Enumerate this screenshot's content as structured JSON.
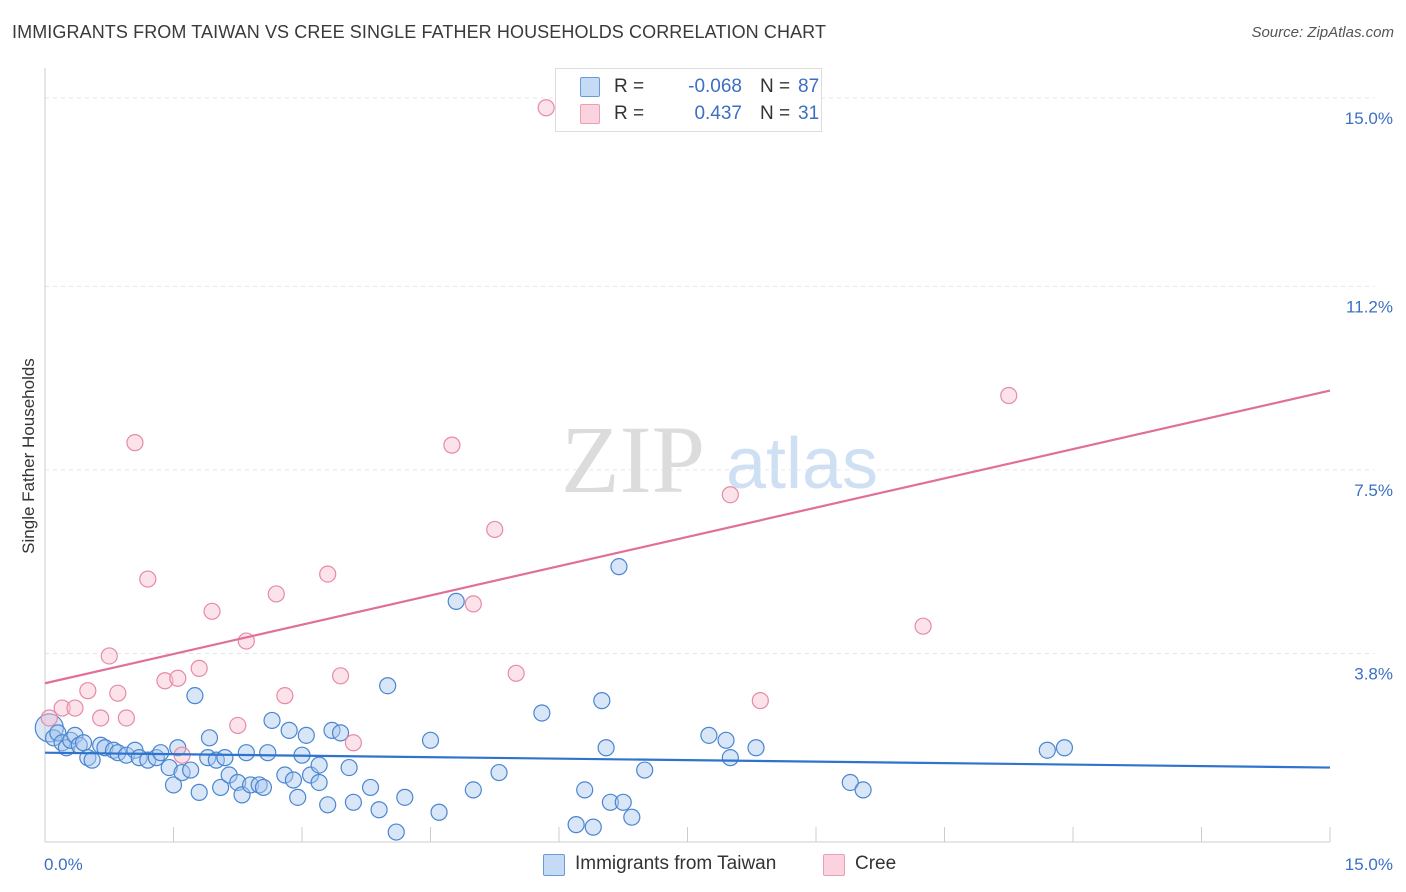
{
  "title": "IMMIGRANTS FROM TAIWAN VS CREE SINGLE FATHER HOUSEHOLDS CORRELATION CHART",
  "source": "Source: ZipAtlas.com",
  "watermark": {
    "zip": "ZIP",
    "atlas": "atlas"
  },
  "colors": {
    "blue_fill": "#a8c8f0",
    "blue_stroke": "#4a86d0",
    "blue_line": "#2f73cc",
    "pink_fill": "#f8c0d0",
    "pink_stroke": "#e68aa8",
    "pink_line": "#e0709a",
    "tick_label": "#3b6fc4",
    "grid": "#e6e6e6"
  },
  "stats": [
    {
      "series": "Immigrants from Taiwan",
      "r_label": "R =",
      "r_value": "-0.068",
      "n_label": "N =",
      "n_value": "87"
    },
    {
      "series": "Cree",
      "r_label": "R =",
      "r_value": "0.437",
      "n_label": "N =",
      "n_value": "31"
    }
  ],
  "legend": [
    {
      "label": "Immigrants from Taiwan"
    },
    {
      "label": "Cree"
    }
  ],
  "chart_data": {
    "type": "scatter",
    "title": "IMMIGRANTS FROM TAIWAN VS CREE SINGLE FATHER HOUSEHOLDS CORRELATION CHART",
    "xlabel": "",
    "ylabel": "Single Father Households",
    "xlim": [
      0,
      15
    ],
    "ylim": [
      0,
      15.4
    ],
    "x_tick_labels": [
      "0.0%",
      "15.0%"
    ],
    "y_ticks": [
      3.8,
      7.5,
      11.2,
      15.0
    ],
    "y_tick_labels": [
      "3.8%",
      "7.5%",
      "11.2%",
      "15.0%"
    ],
    "grid": true,
    "legend_position": "bottom",
    "series": [
      {
        "name": "Immigrants from Taiwan",
        "color": "#4a86d0",
        "points": [
          [
            0.05,
            2.3
          ],
          [
            0.1,
            2.1
          ],
          [
            0.15,
            2.2
          ],
          [
            0.2,
            2.0
          ],
          [
            0.25,
            1.9
          ],
          [
            0.3,
            2.05
          ],
          [
            0.35,
            2.15
          ],
          [
            0.4,
            1.95
          ],
          [
            0.45,
            2.0
          ],
          [
            0.5,
            1.7
          ],
          [
            0.55,
            1.65
          ],
          [
            0.65,
            1.95
          ],
          [
            0.7,
            1.9
          ],
          [
            0.8,
            1.85
          ],
          [
            0.85,
            1.8
          ],
          [
            0.95,
            1.75
          ],
          [
            1.05,
            1.85
          ],
          [
            1.1,
            1.7
          ],
          [
            1.2,
            1.65
          ],
          [
            1.3,
            1.7
          ],
          [
            1.35,
            1.8
          ],
          [
            1.45,
            1.5
          ],
          [
            1.5,
            1.15
          ],
          [
            1.55,
            1.9
          ],
          [
            1.6,
            1.4
          ],
          [
            1.7,
            1.45
          ],
          [
            1.75,
            2.95
          ],
          [
            1.8,
            1.0
          ],
          [
            1.9,
            1.7
          ],
          [
            1.92,
            2.1
          ],
          [
            2.0,
            1.65
          ],
          [
            2.05,
            1.1
          ],
          [
            2.1,
            1.7
          ],
          [
            2.15,
            1.35
          ],
          [
            2.25,
            1.2
          ],
          [
            2.3,
            0.95
          ],
          [
            2.35,
            1.8
          ],
          [
            2.4,
            1.15
          ],
          [
            2.5,
            1.15
          ],
          [
            2.55,
            1.1
          ],
          [
            2.6,
            1.8
          ],
          [
            2.65,
            2.45
          ],
          [
            2.8,
            1.35
          ],
          [
            2.85,
            2.25
          ],
          [
            2.9,
            1.25
          ],
          [
            2.95,
            0.9
          ],
          [
            3.0,
            1.75
          ],
          [
            3.05,
            2.15
          ],
          [
            3.1,
            1.35
          ],
          [
            3.2,
            1.2
          ],
          [
            3.2,
            1.55
          ],
          [
            3.3,
            0.75
          ],
          [
            3.35,
            2.25
          ],
          [
            3.45,
            2.2
          ],
          [
            3.55,
            1.5
          ],
          [
            3.6,
            0.8
          ],
          [
            3.8,
            1.1
          ],
          [
            3.9,
            0.65
          ],
          [
            4.0,
            3.15
          ],
          [
            4.1,
            0.2
          ],
          [
            4.2,
            0.9
          ],
          [
            4.5,
            2.05
          ],
          [
            4.6,
            0.6
          ],
          [
            4.8,
            4.85
          ],
          [
            5.0,
            1.05
          ],
          [
            5.3,
            1.4
          ],
          [
            5.8,
            2.6
          ],
          [
            6.2,
            0.35
          ],
          [
            6.3,
            1.05
          ],
          [
            6.4,
            0.3
          ],
          [
            6.5,
            2.85
          ],
          [
            6.55,
            1.9
          ],
          [
            6.6,
            0.8
          ],
          [
            6.7,
            5.55
          ],
          [
            6.75,
            0.8
          ],
          [
            6.85,
            0.5
          ],
          [
            7.0,
            1.45
          ],
          [
            7.75,
            2.15
          ],
          [
            7.95,
            2.05
          ],
          [
            8.0,
            1.7
          ],
          [
            8.3,
            1.9
          ],
          [
            9.4,
            1.2
          ],
          [
            9.55,
            1.05
          ],
          [
            11.7,
            1.85
          ],
          [
            11.9,
            1.9
          ]
        ],
        "trend": {
          "x": [
            0,
            15
          ],
          "y": [
            1.8,
            1.5
          ]
        }
      },
      {
        "name": "Cree",
        "color": "#e68aa8",
        "points": [
          [
            0.05,
            2.5
          ],
          [
            0.2,
            2.7
          ],
          [
            0.35,
            2.7
          ],
          [
            0.5,
            3.05
          ],
          [
            0.65,
            2.5
          ],
          [
            0.75,
            3.75
          ],
          [
            0.85,
            3.0
          ],
          [
            0.95,
            2.5
          ],
          [
            1.05,
            8.05
          ],
          [
            1.2,
            5.3
          ],
          [
            1.4,
            3.25
          ],
          [
            1.55,
            3.3
          ],
          [
            1.8,
            3.5
          ],
          [
            1.95,
            4.65
          ],
          [
            2.25,
            2.35
          ],
          [
            2.35,
            4.05
          ],
          [
            2.7,
            5.0
          ],
          [
            2.8,
            2.95
          ],
          [
            3.3,
            5.4
          ],
          [
            3.45,
            3.35
          ],
          [
            3.6,
            2.0
          ],
          [
            4.75,
            8.0
          ],
          [
            5.0,
            4.8
          ],
          [
            5.25,
            6.3
          ],
          [
            5.5,
            3.4
          ],
          [
            5.85,
            14.8
          ],
          [
            8.0,
            7.0
          ],
          [
            8.35,
            2.85
          ],
          [
            10.25,
            4.35
          ],
          [
            11.25,
            9.0
          ],
          [
            1.6,
            1.75
          ]
        ],
        "trend": {
          "x": [
            0,
            15
          ],
          "y": [
            3.2,
            9.1
          ]
        }
      }
    ]
  }
}
